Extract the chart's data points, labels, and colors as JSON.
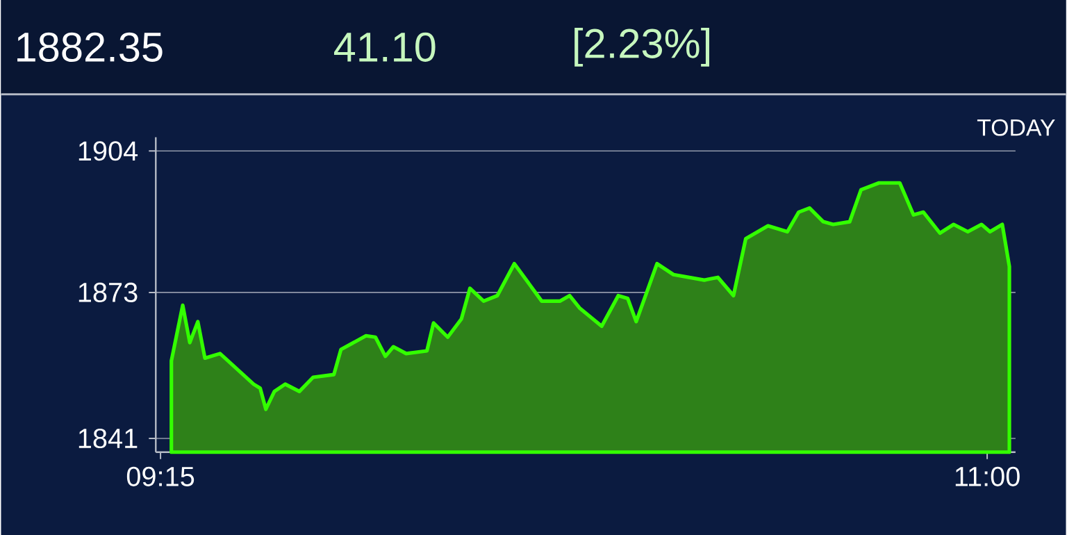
{
  "chart_data": {
    "type": "area",
    "title": "1882.35",
    "annotations": [
      "41.10",
      "[2.23%]",
      "TODAY"
    ],
    "xlim": [
      9.24,
      11.06
    ],
    "ylim": [
      1838,
      1907
    ],
    "xticks": [
      {
        "value": 9.25,
        "label": "09:15"
      },
      {
        "value": 11,
        "label": "11:00"
      }
    ],
    "yticks": [
      1841,
      1873,
      1904
    ],
    "grid": "y",
    "series": [
      {
        "color": "#33ff00",
        "x": [
          9.273,
          9.297,
          9.312,
          9.329,
          9.344,
          9.376,
          9.447,
          9.461,
          9.473,
          9.491,
          9.514,
          9.544,
          9.573,
          9.617,
          9.632,
          9.685,
          9.705,
          9.726,
          9.743,
          9.77,
          9.814,
          9.828,
          9.858,
          9.887,
          9.905,
          9.934,
          9.963,
          9.999,
          10.057,
          10.096,
          10.116,
          10.137,
          10.184,
          10.219,
          10.239,
          10.257,
          10.301,
          10.336,
          10.401,
          10.43,
          10.463,
          10.489,
          10.536,
          10.577,
          10.601,
          10.624,
          10.653,
          10.674,
          10.709,
          10.733,
          10.771,
          10.815,
          10.844,
          10.865,
          10.9,
          10.929,
          10.959,
          10.988,
          11.006,
          11.032,
          11.047
        ],
        "values": [
          1858.0,
          1870.2,
          1862.0,
          1866.6,
          1858.6,
          1859.6,
          1852.9,
          1852.0,
          1847.4,
          1851.3,
          1852.9,
          1851.3,
          1854.4,
          1855.0,
          1860.5,
          1863.5,
          1863.2,
          1859.0,
          1861.1,
          1859.6,
          1860.2,
          1866.3,
          1863.2,
          1867.2,
          1873.9,
          1871.1,
          1872.3,
          1879.3,
          1871.1,
          1871.1,
          1872.3,
          1869.6,
          1865.6,
          1872.3,
          1871.7,
          1866.6,
          1879.3,
          1876.9,
          1875.7,
          1876.3,
          1872.3,
          1884.8,
          1887.6,
          1886.3,
          1890.6,
          1891.5,
          1888.5,
          1887.9,
          1888.5,
          1895.5,
          1897.0,
          1897.0,
          1890.0,
          1890.6,
          1886.0,
          1887.9,
          1886.3,
          1887.9,
          1886.3,
          1887.9,
          1878.7
        ]
      }
    ]
  }
}
